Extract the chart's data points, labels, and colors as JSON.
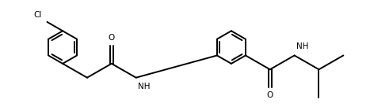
{
  "line_color": "#000000",
  "bg_color": "#ffffff",
  "lw": 1.4,
  "fig_w": 4.67,
  "fig_h": 1.36,
  "dpi": 100,
  "xlim": [
    0,
    9.34
  ],
  "ylim": [
    0,
    2.72
  ]
}
